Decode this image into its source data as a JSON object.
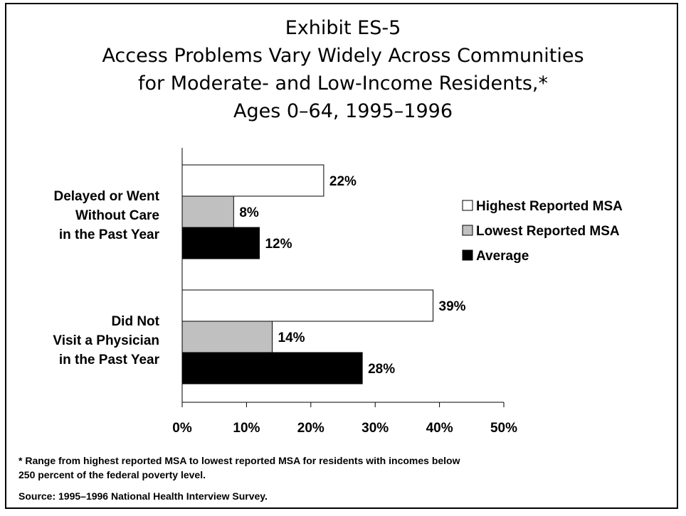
{
  "chart_data": {
    "type": "bar",
    "orientation": "horizontal",
    "title_lines": [
      "Exhibit ES-5",
      "Access Problems Vary Widely Across Communities",
      "for Moderate- and Low-Income Residents,*",
      "Ages 0–64, 1995–1996"
    ],
    "categories": [
      [
        "Delayed or Went",
        "Without Care",
        "in the Past Year"
      ],
      [
        "Did Not",
        "Visit a Physician",
        "in the Past Year"
      ]
    ],
    "series": [
      {
        "name": "Highest Reported MSA",
        "color": "#ffffff",
        "values": [
          22,
          39
        ],
        "labels": [
          "22%",
          "39%"
        ]
      },
      {
        "name": "Lowest Reported MSA",
        "color": "#c0c0c0",
        "values": [
          8,
          14
        ],
        "labels": [
          "8%",
          "14%"
        ]
      },
      {
        "name": "Average",
        "color": "#000000",
        "values": [
          12,
          28
        ],
        "labels": [
          "12%",
          "28%"
        ]
      }
    ],
    "xlim": [
      0,
      50
    ],
    "xticks": [
      0,
      10,
      20,
      30,
      40,
      50
    ],
    "xtick_labels": [
      "0%",
      "10%",
      "20%",
      "30%",
      "40%",
      "50%"
    ],
    "grid": false,
    "legend_position": "right"
  },
  "notes": {
    "footnote_line1": "* Range from highest reported MSA to lowest reported MSA for residents with incomes below",
    "footnote_line2": "250 percent of the federal poverty level.",
    "source": "Source: 1995–1996 National Health Interview Survey."
  }
}
